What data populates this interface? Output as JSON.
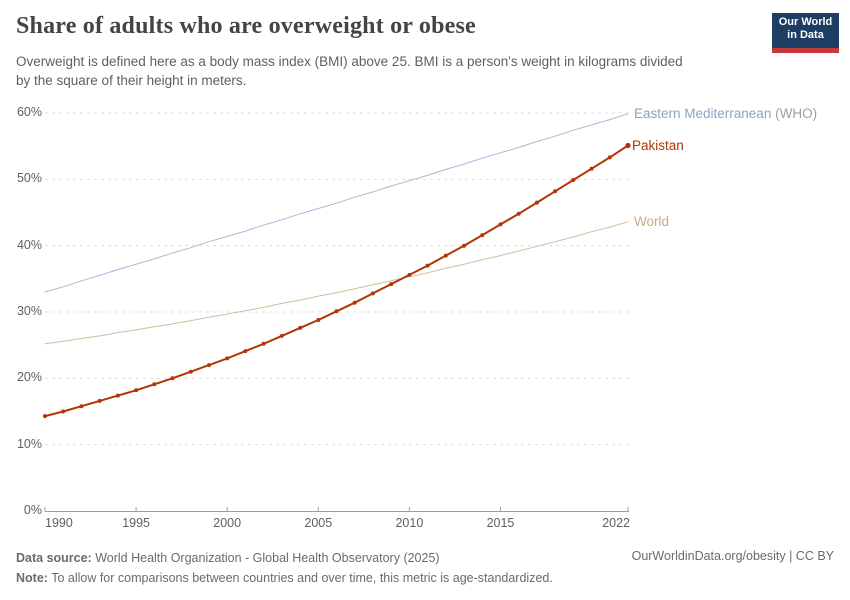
{
  "header": {
    "title": "Share of adults who are overweight or obese",
    "subtitle_line1": "Overweight is defined here as a body mass index (BMI) above 25. BMI is a person's weight in kilograms divided",
    "subtitle_line2": "by the square of their height in meters.",
    "logo": {
      "line1": "Our World",
      "line2": "in Data",
      "bg_color": "#1d3d63",
      "stripe_color": "#c5383c"
    }
  },
  "chart_data": {
    "type": "line",
    "title": "Share of adults who are overweight or obese",
    "xlabel": "",
    "ylabel": "",
    "units": "%",
    "xlim": [
      1990,
      2022
    ],
    "ylim": [
      0,
      60
    ],
    "grid": "horizontal-dashed",
    "legend_position": "right-end-labels",
    "xticks": [
      1990,
      1995,
      2000,
      2005,
      2010,
      2015,
      2022
    ],
    "yticks": [
      0,
      10,
      20,
      30,
      40,
      50,
      60
    ],
    "x": [
      1990,
      1991,
      1992,
      1993,
      1994,
      1995,
      1996,
      1997,
      1998,
      1999,
      2000,
      2001,
      2002,
      2003,
      2004,
      2005,
      2006,
      2007,
      2008,
      2009,
      2010,
      2011,
      2012,
      2013,
      2014,
      2015,
      2016,
      2017,
      2018,
      2019,
      2020,
      2021,
      2022
    ],
    "series": [
      {
        "name": "Eastern Mediterranean (WHO)",
        "label": "Eastern Mediterranean",
        "label_suffix": " (WHO)",
        "color": "#a4bcd8",
        "label_color": "#8ba3c5",
        "suffix_color": "#9f9f9f",
        "line_width": 1,
        "markers": false,
        "values": [
          33.0,
          33.8,
          34.7,
          35.5,
          36.4,
          37.2,
          38.0,
          38.9,
          39.7,
          40.6,
          41.4,
          42.2,
          43.1,
          43.9,
          44.8,
          45.6,
          46.4,
          47.3,
          48.1,
          49.0,
          49.8,
          50.6,
          51.5,
          52.3,
          53.2,
          54.0,
          54.8,
          55.7,
          56.5,
          57.4,
          58.2,
          59.0,
          59.9
        ]
      },
      {
        "name": "Pakistan",
        "label": "Pakistan",
        "label_suffix": "",
        "color": "#b13507",
        "label_color": "#b13507",
        "suffix_color": "#b13507",
        "line_width": 2,
        "markers": true,
        "values": [
          14.3,
          15.0,
          15.8,
          16.6,
          17.4,
          18.2,
          19.1,
          20.0,
          21.0,
          22.0,
          23.0,
          24.1,
          25.2,
          26.4,
          27.6,
          28.8,
          30.1,
          31.4,
          32.8,
          34.2,
          35.6,
          37.0,
          38.5,
          40.0,
          41.6,
          43.2,
          44.8,
          46.5,
          48.2,
          49.9,
          51.6,
          53.3,
          55.1
        ]
      },
      {
        "name": "World",
        "label": "World",
        "label_suffix": "",
        "color": "#d3bd9d",
        "label_color": "#c8ab80",
        "suffix_color": "#c8ab80",
        "line_width": 1,
        "markers": false,
        "values": [
          25.2,
          25.6,
          26.0,
          26.4,
          26.9,
          27.3,
          27.8,
          28.2,
          28.7,
          29.2,
          29.7,
          30.2,
          30.7,
          31.3,
          31.8,
          32.4,
          32.9,
          33.5,
          34.1,
          34.7,
          35.3,
          35.9,
          36.6,
          37.2,
          37.9,
          38.5,
          39.2,
          39.9,
          40.6,
          41.3,
          42.1,
          42.8,
          43.6
        ]
      }
    ]
  },
  "footer": {
    "datasource_label": "Data source:",
    "datasource_text": " World Health Organization - Global Health Observatory (2025)",
    "note_label": "Note:",
    "note_text": " To allow for comparisons between countries and over time, this metric is age-standardized.",
    "link": "OurWorldinData.org/obesity | CC BY"
  }
}
